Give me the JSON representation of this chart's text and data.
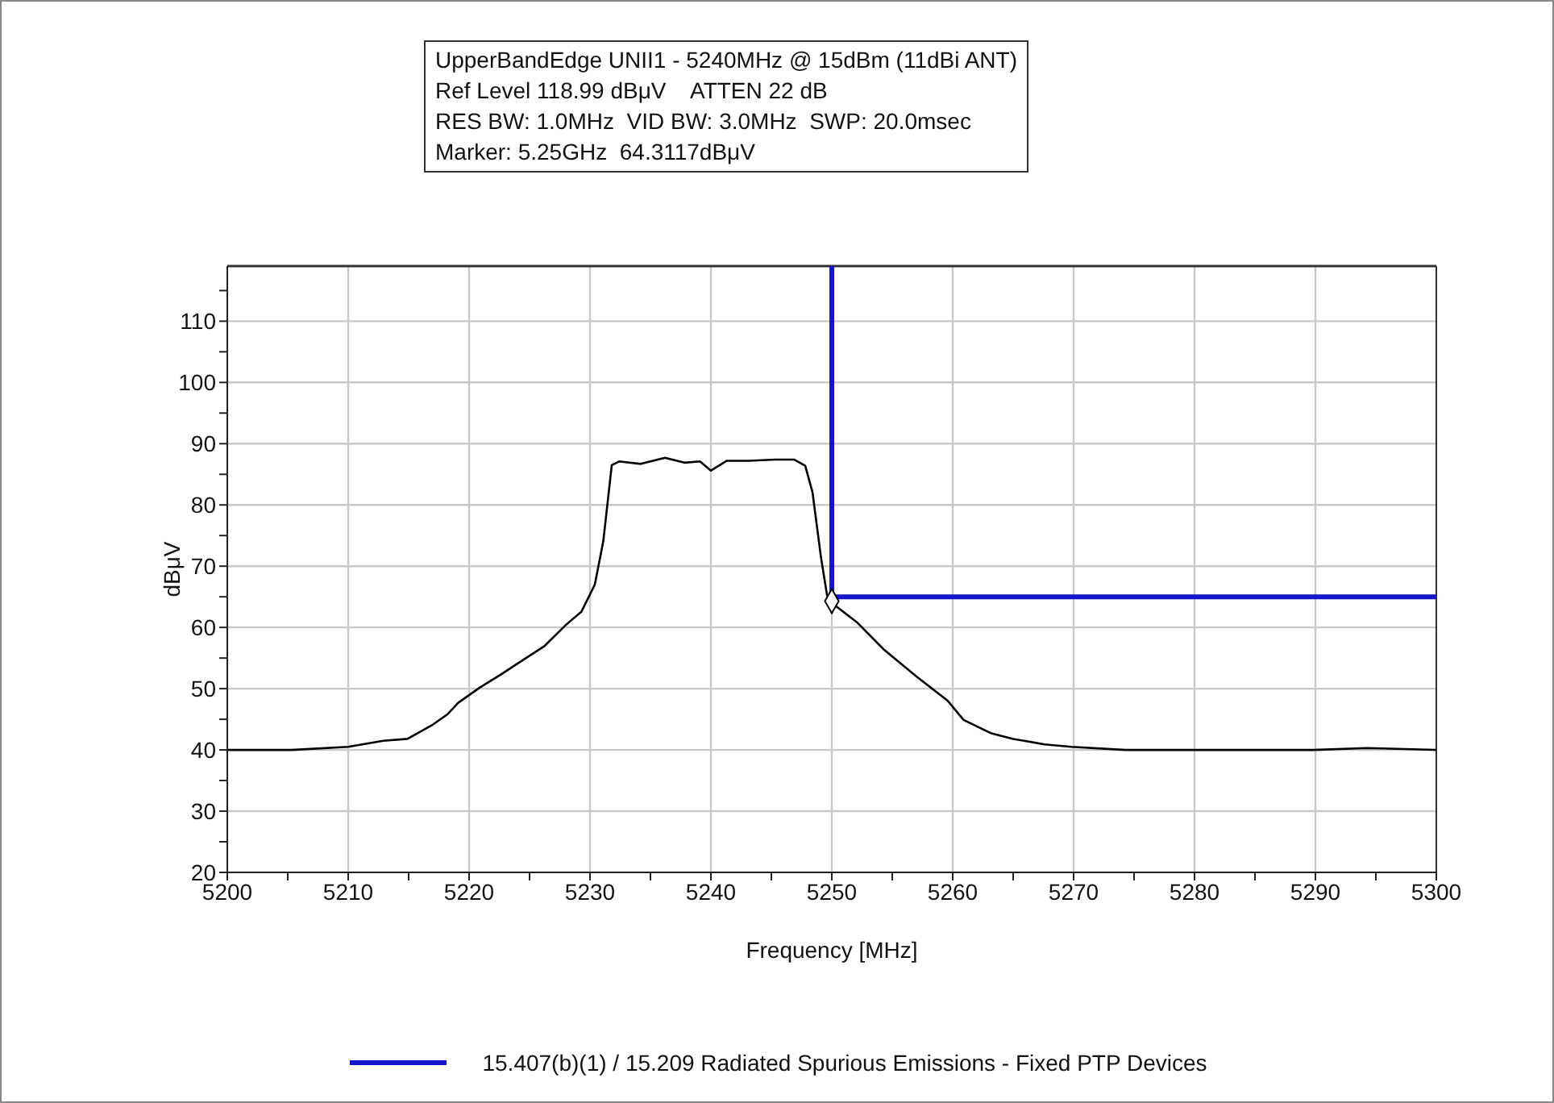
{
  "chart_data": {
    "type": "line",
    "title": "UpperBandEdge UNII1 - 5240MHz @ 15dBm (11dBi ANT)",
    "annotations": [
      "Ref Level 118.99 dBμV    ATTEN 22 dB",
      "RES BW: 1.0MHz  VID BW: 3.0MHz  SWP: 20.0msec",
      "Marker: 5.25GHz  64.3117dBμV"
    ],
    "xlabel": "Frequency [MHz]",
    "ylabel": "dBμV",
    "xlim": [
      5200,
      5300
    ],
    "ylim": [
      20,
      119
    ],
    "xticks": [
      5200,
      {
        "value": 5205,
        "label": null
      },
      5210,
      {
        "value": 5215,
        "label": null
      },
      5220,
      {
        "value": 5225,
        "label": null
      },
      5230,
      {
        "value": 5235,
        "label": null
      },
      5240,
      {
        "value": 5245,
        "label": null
      },
      5250,
      {
        "value": 5255,
        "label": null
      },
      5260,
      {
        "value": 5265,
        "label": null
      },
      5270,
      {
        "value": 5275,
        "label": null
      },
      5280,
      {
        "value": 5285,
        "label": null
      },
      5290,
      {
        "value": 5295,
        "label": null
      },
      5300
    ],
    "yticks": [
      20,
      {
        "value": 25,
        "label": null
      },
      30,
      {
        "value": 35,
        "label": null
      },
      40,
      {
        "value": 45,
        "label": null
      },
      50,
      {
        "value": 55,
        "label": null
      },
      60,
      {
        "value": 65,
        "label": null
      },
      70,
      {
        "value": 75,
        "label": null
      },
      80,
      {
        "value": 85,
        "label": null
      },
      90,
      {
        "value": 95,
        "label": null
      },
      100,
      {
        "value": 105,
        "label": null
      },
      110,
      {
        "value": 115,
        "label": null
      }
    ],
    "grid": true,
    "legend": "bottom",
    "line_style": "solid",
    "series": [
      {
        "color": "#000000",
        "x": [
          5200,
          5205.3,
          5210,
          5212.9,
          5214.9,
          5216.9,
          5218.2,
          5219.1,
          5220.9,
          5222.7,
          5224.4,
          5226.2,
          5228,
          5229.3,
          5230.4,
          5231.1,
          5231.8,
          5232.4,
          5234.2,
          5236.2,
          5237.8,
          5239.1,
          5240,
          5241.3,
          5243.1,
          5245.3,
          5246.9,
          5247.8,
          5248.4,
          5249.1,
          5249.6,
          5250,
          5252.1,
          5254.3,
          5257,
          5259.6,
          5260.9,
          5263.2,
          5265,
          5267.6,
          5269.8,
          5274.3,
          5280,
          5285.3,
          5289.8,
          5294.3,
          5300
        ],
        "values": [
          40,
          40,
          40.5,
          41.5,
          41.8,
          44,
          45.8,
          47.7,
          50.2,
          52.4,
          54.6,
          56.9,
          60.4,
          62.6,
          67,
          74.1,
          86.5,
          87.1,
          86.7,
          87.7,
          86.9,
          87.1,
          85.6,
          87.2,
          87.2,
          87.4,
          87.4,
          86.4,
          82.1,
          71.5,
          65.3,
          64,
          60.8,
          56.4,
          52,
          48,
          44.9,
          42.7,
          41.8,
          40.9,
          40.5,
          40,
          40,
          40,
          40,
          40.3,
          40
        ]
      },
      {
        "name": "15.407(b)(1) / 15.209 Radiated Spurious Emissions - Fixed  PTP Devices",
        "color": "#1414c8",
        "x": [
          5250,
          5250,
          5300
        ],
        "values": [
          119,
          65,
          65
        ]
      },
      {
        "type": "scatter",
        "marker": "diamond",
        "color": "#000000",
        "x": [
          5250
        ],
        "values": [
          64.3
        ]
      }
    ]
  }
}
